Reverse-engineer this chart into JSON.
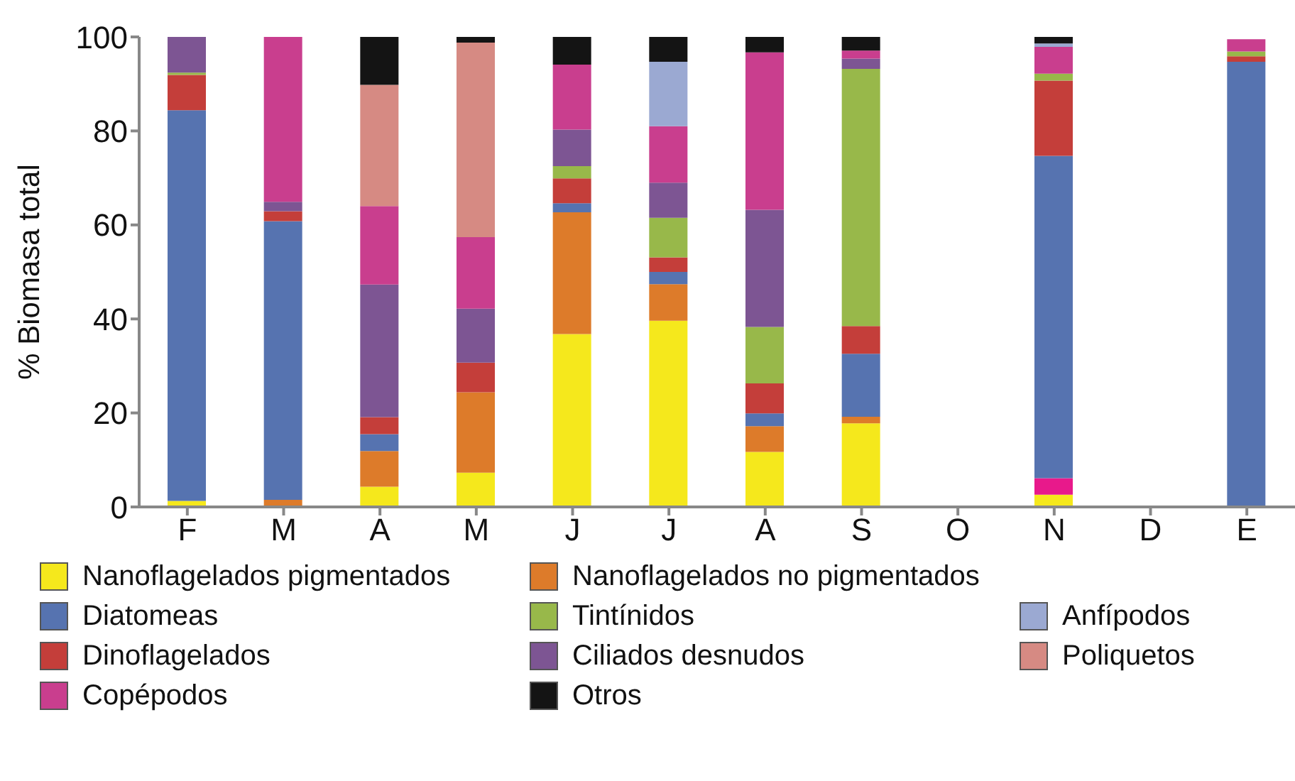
{
  "chart_data": {
    "type": "bar",
    "stacked": true,
    "ylabel": "% Biomasa total",
    "categories": [
      "F",
      "M",
      "A",
      "M",
      "J",
      "J",
      "A",
      "S",
      "O",
      "N",
      "D",
      "E"
    ],
    "ylim": [
      0,
      100
    ],
    "yticks": [
      0,
      20,
      40,
      60,
      80,
      100
    ],
    "legend": "bottom",
    "series": [
      {
        "name": "Nanoflagelados pigmentados",
        "color": "#f5e81c",
        "values": [
          1.3,
          null,
          4.3,
          7.3,
          36.8,
          39.6,
          11.7,
          17.8,
          null,
          2.6,
          null,
          null
        ]
      },
      {
        "color": "#e8198b",
        "values": [
          null,
          null,
          null,
          null,
          null,
          null,
          null,
          null,
          null,
          3.5,
          null,
          null
        ]
      },
      {
        "name": "Nanoflagelados no pigmentados",
        "color": "#dd7b2a",
        "values": [
          null,
          1.5,
          7.6,
          17.1,
          25.9,
          7.8,
          5.5,
          1.4,
          null,
          null,
          null,
          null
        ]
      },
      {
        "name": "Diatomeas",
        "color": "#5673b0",
        "values": [
          83.1,
          59.3,
          3.6,
          null,
          1.9,
          2.6,
          2.7,
          13.4,
          null,
          68.6,
          null,
          94.7
        ]
      },
      {
        "name": "Dinoflagelados",
        "color": "#c43e3a",
        "values": [
          7.5,
          2.1,
          3.6,
          6.3,
          5.3,
          3.1,
          6.4,
          5.9,
          null,
          16,
          null,
          1.2
        ]
      },
      {
        "name": "Tintínidos",
        "color": "#98b84a",
        "values": [
          0.5,
          null,
          null,
          null,
          2.6,
          8.4,
          12,
          54.7,
          null,
          1.5,
          null,
          1
        ]
      },
      {
        "name": "Ciliados desnudos",
        "color": "#7d5593",
        "values": [
          7.6,
          2,
          28.2,
          11.5,
          7.8,
          7.5,
          24.9,
          2.2,
          null,
          null,
          null,
          null
        ]
      },
      {
        "name": "Copépodos",
        "color": "#c93e8e",
        "values": [
          null,
          35.1,
          16.7,
          15.2,
          13.8,
          12,
          33.5,
          1.7,
          null,
          5.7,
          null,
          2.6
        ]
      },
      {
        "name": "Anfípodos",
        "color": "#9ba9d2",
        "values": [
          null,
          null,
          null,
          null,
          null,
          13.7,
          null,
          null,
          null,
          0.7,
          null,
          null
        ]
      },
      {
        "name": "Poliquetos",
        "color": "#d68a83",
        "values": [
          null,
          null,
          25.8,
          41.4,
          null,
          null,
          null,
          null,
          null,
          null,
          null,
          null
        ]
      },
      {
        "name": "Otros",
        "color": "#141414",
        "values": [
          null,
          null,
          10.2,
          1.2,
          5.9,
          5.3,
          3.3,
          2.9,
          null,
          1.4,
          null,
          null
        ]
      }
    ]
  }
}
